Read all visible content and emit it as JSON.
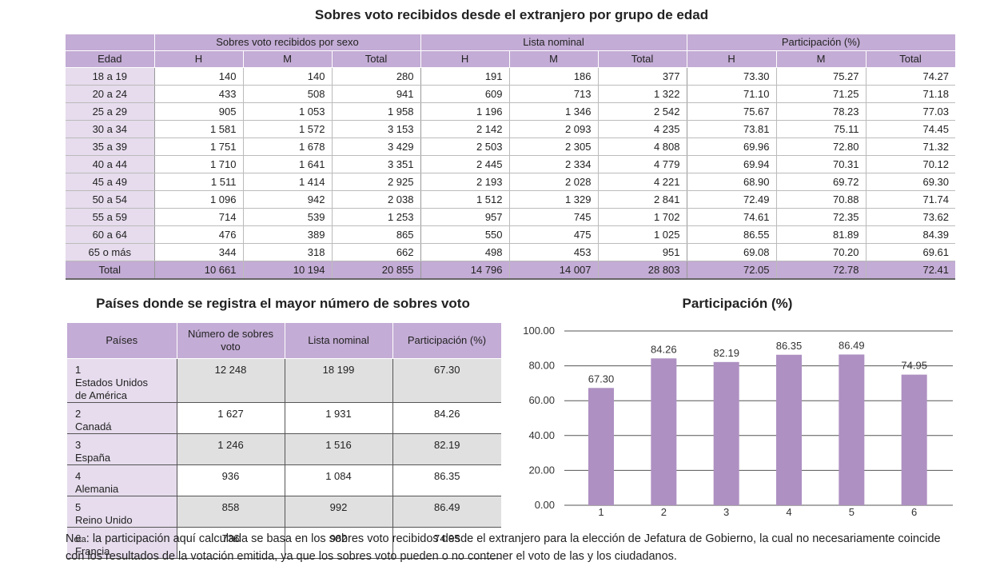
{
  "main_title": "Sobres voto recibidos desde el extranjero por grupo de edad",
  "age_table": {
    "group_headers": [
      "Sobres voto recibidos por sexo",
      "Lista nominal",
      "Participación (%)"
    ],
    "col_headers": [
      "Edad",
      "H",
      "M",
      "Total",
      "H",
      "M",
      "Total",
      "H",
      "M",
      "Total"
    ],
    "rows": [
      [
        "18 a 19",
        "140",
        "140",
        "280",
        "191",
        "186",
        "377",
        "73.30",
        "75.27",
        "74.27"
      ],
      [
        "20 a 24",
        "433",
        "508",
        "941",
        "609",
        "713",
        "1 322",
        "71.10",
        "71.25",
        "71.18"
      ],
      [
        "25 a 29",
        "905",
        "1 053",
        "1 958",
        "1 196",
        "1 346",
        "2 542",
        "75.67",
        "78.23",
        "77.03"
      ],
      [
        "30 a 34",
        "1 581",
        "1 572",
        "3 153",
        "2 142",
        "2 093",
        "4 235",
        "73.81",
        "75.11",
        "74.45"
      ],
      [
        "35 a 39",
        "1 751",
        "1 678",
        "3 429",
        "2 503",
        "2 305",
        "4 808",
        "69.96",
        "72.80",
        "71.32"
      ],
      [
        "40 a 44",
        "1 710",
        "1 641",
        "3 351",
        "2 445",
        "2 334",
        "4 779",
        "69.94",
        "70.31",
        "70.12"
      ],
      [
        "45 a 49",
        "1 511",
        "1 414",
        "2 925",
        "2 193",
        "2 028",
        "4 221",
        "68.90",
        "69.72",
        "69.30"
      ],
      [
        "50 a 54",
        "1 096",
        "942",
        "2 038",
        "1 512",
        "1 329",
        "2 841",
        "72.49",
        "70.88",
        "71.74"
      ],
      [
        "55 a 59",
        "714",
        "539",
        "1 253",
        "957",
        "745",
        "1 702",
        "74.61",
        "72.35",
        "73.62"
      ],
      [
        "60 a 64",
        "476",
        "389",
        "865",
        "550",
        "475",
        "1 025",
        "86.55",
        "81.89",
        "84.39"
      ],
      [
        "65 o más",
        "344",
        "318",
        "662",
        "498",
        "453",
        "951",
        "69.08",
        "70.20",
        "69.61"
      ]
    ],
    "total_row": [
      "Total",
      "10 661",
      "10 194",
      "20 855",
      "14 796",
      "14 007",
      "28 803",
      "72.05",
      "72.78",
      "72.41"
    ]
  },
  "countries_title": "Países donde se registra el mayor número de sobres voto",
  "countries_table": {
    "headers": [
      "Países",
      "Número de sobres voto",
      "Lista nominal",
      "Participación (%)"
    ],
    "rows": [
      {
        "rank": "1",
        "name": "Estados Unidos de América",
        "sobres": "12 248",
        "lista": "18 199",
        "part": "67.30"
      },
      {
        "rank": "2",
        "name": "Canadá",
        "sobres": "1 627",
        "lista": "1 931",
        "part": "84.26"
      },
      {
        "rank": "3",
        "name": "España",
        "sobres": "1 246",
        "lista": "1 516",
        "part": "82.19"
      },
      {
        "rank": "4",
        "name": "Alemania",
        "sobres": "936",
        "lista": "1 084",
        "part": "86.35"
      },
      {
        "rank": "5",
        "name": "Reino Unido",
        "sobres": "858",
        "lista": "992",
        "part": "86.49"
      },
      {
        "rank": "6",
        "name": "Francia",
        "sobres": "736",
        "lista": "982",
        "part": "74.95"
      }
    ]
  },
  "chart_data": {
    "type": "bar",
    "title": "Participación (%)",
    "categories": [
      "1",
      "2",
      "3",
      "4",
      "5",
      "6"
    ],
    "values": [
      67.3,
      84.26,
      82.19,
      86.35,
      86.49,
      74.95
    ],
    "value_labels": [
      "67.30",
      "84.26",
      "82.19",
      "86.35",
      "86.49",
      "74.95"
    ],
    "ylim": [
      0,
      100
    ],
    "yticks": [
      "0.00",
      "20.00",
      "40.00",
      "60.00",
      "80.00",
      "100.00"
    ],
    "grid": true,
    "bar_color": "#ae90c2"
  },
  "note": {
    "lead_cap": "N",
    "lead_small": "ota",
    "text": ": la participación aquí calculada se basa en los sobres voto recibidos desde el extranjero para la elección de Jefatura de Gobierno,  la cual no necesariamente coincide con los resultados de la votación emitida, ya que los sobres voto pueden o no contener el voto de las y los ciudadanos."
  }
}
